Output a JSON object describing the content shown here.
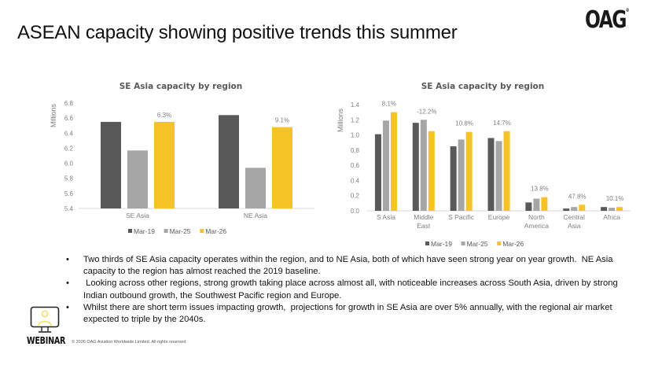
{
  "slide": {
    "title": "ASEAN capacity showing positive trends this summer",
    "logo": "OAG",
    "logo_mark": "®"
  },
  "legend_colors": {
    "Mar-19": "#595959",
    "Mar-25": "#a6a6a6",
    "Mar-26": "#f5c326"
  },
  "chart_data": [
    {
      "type": "bar",
      "title": "SE Asia capacity by region",
      "xlabel": "",
      "ylabel": "Millions",
      "ylim": [
        5.4,
        6.8
      ],
      "yticks": [
        "5.4",
        "5.6",
        "5.8",
        "6.0",
        "6.2",
        "6.4",
        "6.6",
        "6.8"
      ],
      "ytick_values": [
        5.4,
        5.6,
        5.8,
        6.0,
        6.2,
        6.4,
        6.6,
        6.8
      ],
      "grid": false,
      "legend_position": "bottom",
      "categories": [
        "SE Asia",
        "NE Asia"
      ],
      "series": [
        {
          "name": "Mar-19",
          "values": [
            6.55,
            6.64
          ]
        },
        {
          "name": "Mar-25",
          "values": [
            6.17,
            5.94
          ]
        },
        {
          "name": "Mar-26",
          "values": [
            6.55,
            6.48
          ]
        }
      ],
      "annotations": [
        "6.3%",
        "9.1%"
      ]
    },
    {
      "type": "bar",
      "title": "SE Asia capacity by region",
      "xlabel": "",
      "ylabel": "Millions",
      "ylim": [
        0.0,
        1.4
      ],
      "yticks": [
        "0.0",
        "0.2",
        "0.4",
        "0.6",
        "0.8",
        "1.0",
        "1.2",
        "1.4"
      ],
      "ytick_values": [
        0.0,
        0.2,
        0.4,
        0.6,
        0.8,
        1.0,
        1.2,
        1.4
      ],
      "grid": false,
      "legend_position": "bottom",
      "categories": [
        "S Asia",
        "Middle East",
        "S Pacific",
        "Europe",
        "North America",
        "Central Asia",
        "Africa"
      ],
      "category_lines": [
        [
          "S Asia"
        ],
        [
          "Middle",
          "East"
        ],
        [
          "S Pacific"
        ],
        [
          "Europe"
        ],
        [
          "North",
          "America"
        ],
        [
          "Central",
          "Asia"
        ],
        [
          "Africa"
        ]
      ],
      "series": [
        {
          "name": "Mar-19",
          "values": [
            1.01,
            1.16,
            0.85,
            0.96,
            0.11,
            0.03,
            0.05
          ]
        },
        {
          "name": "Mar-25",
          "values": [
            1.19,
            1.2,
            0.94,
            0.92,
            0.16,
            0.05,
            0.04
          ]
        },
        {
          "name": "Mar-26",
          "values": [
            1.3,
            1.05,
            1.04,
            1.05,
            0.18,
            0.08,
            0.05
          ]
        }
      ],
      "annotations": [
        "8.1%",
        "-12.2%",
        "10.8%",
        "14.7%",
        "13.8%",
        "47.8%",
        "10.1%"
      ]
    }
  ],
  "bullets": [
    "Two thirds of SE Asia capacity operates within the region, and to NE Asia, both of which have seen strong year on year growth.  NE Asia capacity to the region has almost reached the 2019 baseline.",
    " Looking across other regions, strong growth taking place across almost all, with noticeable increases across South Asia, driven by strong Indian outbound growth, the Southwest Pacific region and Europe.",
    "Whilst there are short term issues impacting growth,  projections for growth in SE Asia are over 5% annually, with the regional air market expected to triple by the 2040s."
  ],
  "bullet_glyph": "•",
  "footer": {
    "webinar_label": "WEBINAR",
    "webinar_icon": "monitor-person-icon",
    "copyright": "© 2026 OAG Aviation Worldwide Limited. All rights reserved"
  }
}
